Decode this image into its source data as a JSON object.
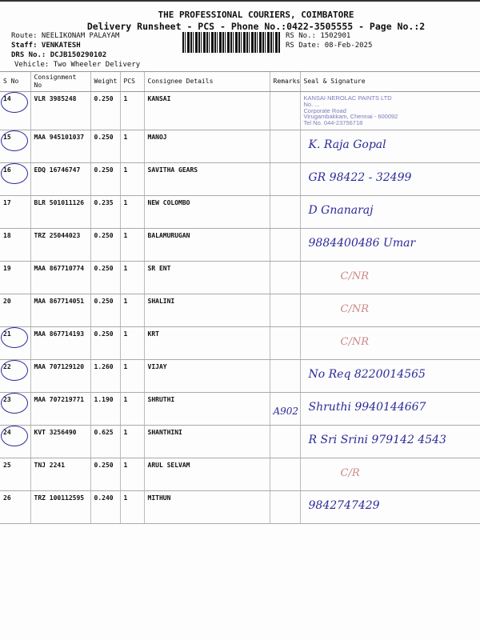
{
  "header": {
    "title": "THE PROFESSIONAL COURIERS, COIMBATORE",
    "subtitle": "Delivery Runsheet - PCS - Phone No.:0422-3505555 - Page No.:2",
    "route": "Route: NEELIKONAM PALAYAM",
    "staff": "Staff: VENKATESH",
    "drs": "DRS No.: DCJB150290102",
    "vehicle": "Vehicle: Two Wheeler Delivery",
    "rs_no": "RS No.: 1502901",
    "rs_date": "RS Date: 08-Feb-2025"
  },
  "columns": [
    "S No",
    "Consignment No",
    "Weight",
    "PCS",
    "Consignee Details",
    "Remarks",
    "Seal & Signature"
  ],
  "rows": [
    {
      "sno": "14",
      "cn": "VLR 3985248",
      "wt": "0.250",
      "pcs": "1",
      "name": "KANSAI",
      "remark": "",
      "sig": ""
    },
    {
      "sno": "15",
      "cn": "MAA 945101037",
      "wt": "0.250",
      "pcs": "1",
      "name": "MANOJ",
      "remark": "",
      "sig": "K. Raja Gopal"
    },
    {
      "sno": "16",
      "cn": "EDQ 16746747",
      "wt": "0.250",
      "pcs": "1",
      "name": "SAVITHA GEARS",
      "remark": "",
      "sig": "GR   98422 - 32499"
    },
    {
      "sno": "17",
      "cn": "BLR 501011126",
      "wt": "0.235",
      "pcs": "1",
      "name": "NEW COLOMBO",
      "remark": "",
      "sig": "D Gnanaraj"
    },
    {
      "sno": "18",
      "cn": "TRZ 25044023",
      "wt": "0.250",
      "pcs": "1",
      "name": "BALAMURUGAN",
      "remark": "",
      "sig": "9884400486 Umar"
    },
    {
      "sno": "19",
      "cn": "MAA 867710774",
      "wt": "0.250",
      "pcs": "1",
      "name": "SR ENT",
      "remark": "",
      "sig": "C/NR"
    },
    {
      "sno": "20",
      "cn": "MAA 867714051",
      "wt": "0.250",
      "pcs": "1",
      "name": "SHALINI",
      "remark": "",
      "sig": "C/NR"
    },
    {
      "sno": "21",
      "cn": "MAA 867714193",
      "wt": "0.250",
      "pcs": "1",
      "name": "KRT",
      "remark": "",
      "sig": "C/NR"
    },
    {
      "sno": "22",
      "cn": "MAA 707129120",
      "wt": "1.260",
      "pcs": "1",
      "name": "VIJAY",
      "remark": "",
      "sig": "No Req 8220014565"
    },
    {
      "sno": "23",
      "cn": "MAA 707219771",
      "wt": "1.190",
      "pcs": "1",
      "name": "SHRUTHI",
      "remark": "A902",
      "sig": "Shruthi 9940144667"
    },
    {
      "sno": "24",
      "cn": "KVT 3256490",
      "wt": "0.625",
      "pcs": "1",
      "name": "SHANTHINI",
      "remark": "",
      "sig": "R Sri Srini 979142 4543"
    },
    {
      "sno": "25",
      "cn": "TNJ 2241",
      "wt": "0.250",
      "pcs": "1",
      "name": "ARUL SELVAM",
      "remark": "",
      "sig": "C/R"
    },
    {
      "sno": "26",
      "cn": "TRZ 100112595",
      "wt": "0.240",
      "pcs": "1",
      "name": "MITHUN",
      "remark": "",
      "sig": "9842747429"
    }
  ],
  "stamp": [
    "KANSAI NEROLAC PAINTS LTD",
    "No. ...",
    "Corporate Road",
    "Virugambakkam, Chennai - 600092",
    "Tel No. 044-23756718"
  ]
}
